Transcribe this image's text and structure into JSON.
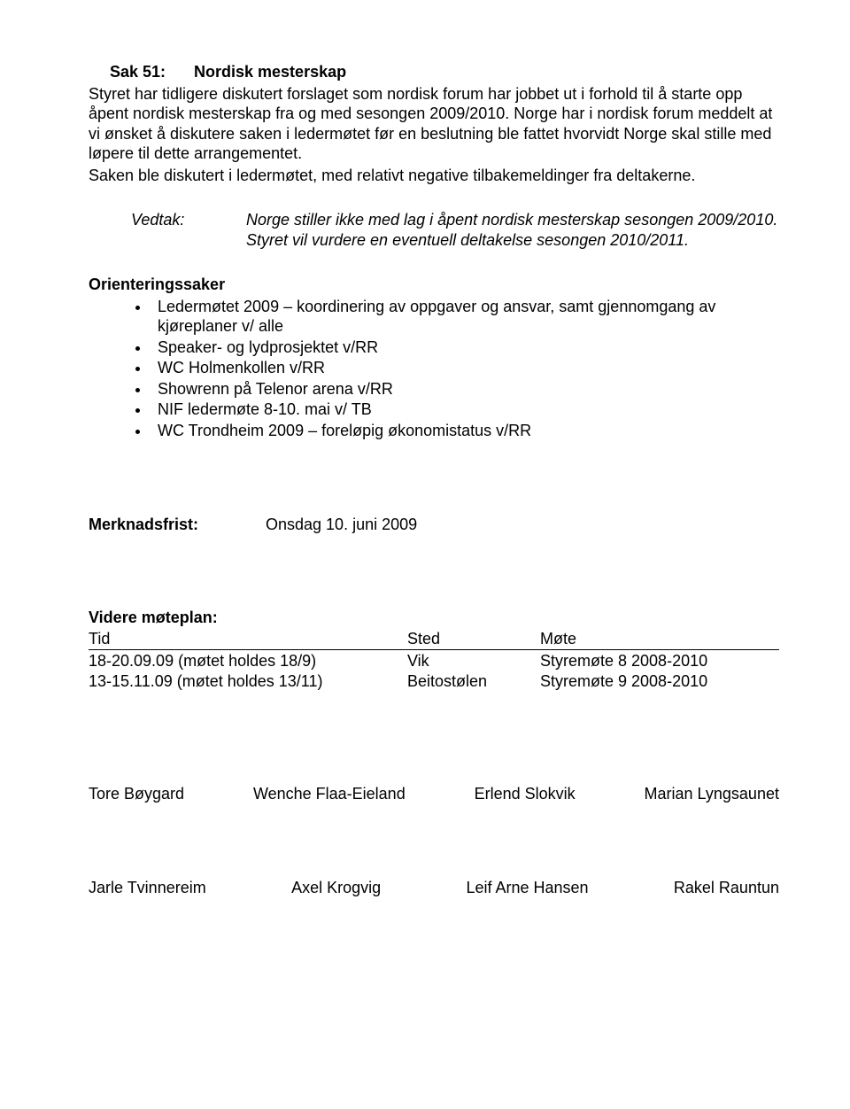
{
  "sak": {
    "label": "Sak 51:",
    "title": "Nordisk mesterskap",
    "p1": "Styret har tidligere diskutert forslaget som nordisk forum har jobbet ut i forhold til å starte opp åpent nordisk mesterskap fra og med sesongen 2009/2010. Norge har i nordisk forum meddelt at vi ønsket å diskutere saken i ledermøtet før en beslutning ble fattet hvorvidt Norge skal stille med løpere til dette arrangementet.",
    "p2": "Saken ble diskutert i ledermøtet, med relativt negative tilbakemeldinger fra deltakerne."
  },
  "vedtak": {
    "label": "Vedtak:",
    "text": "Norge stiller ikke med lag i åpent nordisk mesterskap sesongen 2009/2010. Styret vil vurdere en eventuell deltakelse sesongen 2010/2011."
  },
  "orientering": {
    "title": "Orienteringssaker",
    "items": [
      "Ledermøtet 2009 – koordinering av oppgaver og ansvar, samt gjennomgang av kjøreplaner v/ alle",
      "Speaker- og lydprosjektet v/RR",
      "WC Holmenkollen v/RR",
      "Showrenn på Telenor arena v/RR",
      "NIF ledermøte 8-10. mai v/ TB",
      "WC Trondheim 2009 – foreløpig økonomistatus v/RR"
    ]
  },
  "merknad": {
    "label": "Merknadsfrist:",
    "value": "Onsdag 10. juni 2009"
  },
  "plan": {
    "title": "Videre møteplan:",
    "header": {
      "c1": "Tid",
      "c2": "Sted",
      "c3": "Møte"
    },
    "rows": [
      {
        "c1": "18-20.09.09 (møtet holdes 18/9)",
        "c2": "Vik",
        "c3": "Styremøte 8 2008-2010"
      },
      {
        "c1": "13-15.11.09 (møtet holdes 13/11)",
        "c2": "Beitostølen",
        "c3": "Styremøte 9 2008-2010"
      }
    ]
  },
  "signatures": {
    "row1": [
      "Tore Bøygard",
      "Wenche Flaa-Eieland",
      "Erlend Slokvik",
      "Marian Lyngsaunet"
    ],
    "row2": [
      "Jarle Tvinnereim",
      "Axel Krogvig",
      "Leif Arne Hansen",
      "Rakel Rauntun"
    ]
  }
}
